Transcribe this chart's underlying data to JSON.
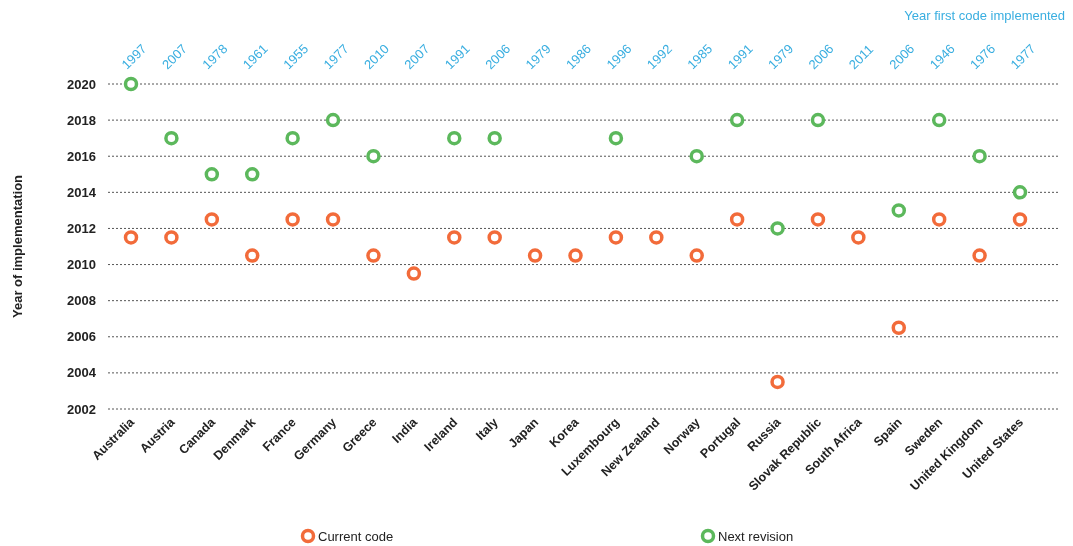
{
  "chart_data": {
    "type": "scatter",
    "ylabel": "Year of implementation",
    "x2label": "Year first code implemented",
    "categories": [
      "Australia",
      "Austria",
      "Canada",
      "Denmark",
      "France",
      "Germany",
      "Greece",
      "India",
      "Ireland",
      "Italy",
      "Japan",
      "Korea",
      "Luxembourg",
      "New Zealand",
      "Norway",
      "Portugal",
      "Russia",
      "Slovak Republic",
      "South Africa",
      "Spain",
      "Sweden",
      "United Kingdom",
      "United States"
    ],
    "series": [
      {
        "name": "Current code",
        "color": "#f26b3a",
        "values": [
          2011.5,
          2011.5,
          2012.5,
          2010.5,
          2012.5,
          2012.5,
          2010.5,
          2009.5,
          2011.5,
          2011.5,
          2010.5,
          2010.5,
          2011.5,
          2011.5,
          2010.5,
          2012.5,
          2003.5,
          2012.5,
          2011.5,
          2006.5,
          2012.5,
          2010.5,
          2012.5
        ]
      },
      {
        "name": "Next revision",
        "color": "#5cb85c",
        "values": [
          2020,
          2017,
          2015,
          2015,
          2017,
          2018,
          2016,
          null,
          2017,
          2017,
          null,
          null,
          2017,
          null,
          2016,
          2018,
          2012,
          2018,
          null,
          2013,
          2018,
          2016,
          2014
        ]
      }
    ],
    "ylim": [
      2002,
      2020
    ],
    "yticks": [
      2002,
      2004,
      2006,
      2008,
      2010,
      2012,
      2014,
      2016,
      2018,
      2020
    ],
    "grid": "y",
    "legend": "bottom",
    "marker": "circle",
    "annotations": [
      "1997",
      "2007",
      "1978",
      "1961",
      "1955",
      "1977",
      "2010",
      "2007",
      "1991",
      "2006",
      "1979",
      "1986",
      "1996",
      "1992",
      "1985",
      "1991",
      "1979",
      "2006",
      "2011",
      "2006",
      "1946",
      "1976",
      "1977"
    ]
  }
}
